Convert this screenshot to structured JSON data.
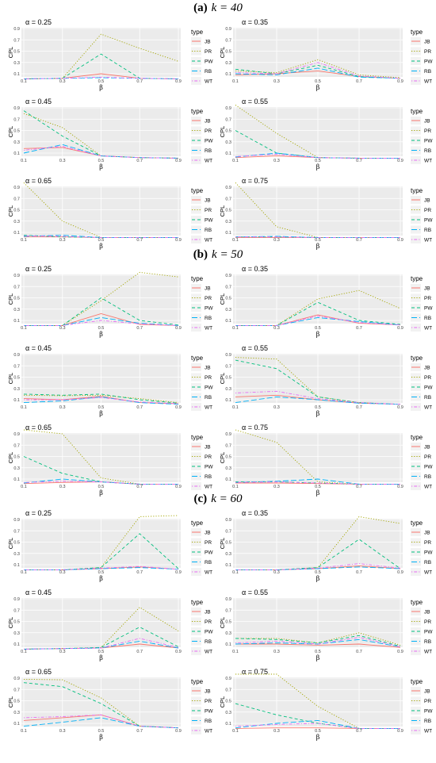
{
  "sections": [
    {
      "label": "(a)",
      "k_text": "k = 40"
    },
    {
      "label": "(b)",
      "k_text": "k = 50"
    },
    {
      "label": "(c)",
      "k_text": "k = 60"
    }
  ],
  "legend": {
    "title": "type",
    "entries": [
      {
        "name": "JB",
        "color": "#F8766D",
        "dash": "solid"
      },
      {
        "name": "PR",
        "color": "#A3A500",
        "dash": "dotted"
      },
      {
        "name": "PW",
        "color": "#00BF7D",
        "dash": "dashed"
      },
      {
        "name": "RB",
        "color": "#00B0F6",
        "dash": "longdash"
      },
      {
        "name": "WT",
        "color": "#E76BF3",
        "dash": "dotdash"
      }
    ]
  },
  "axes": {
    "xlabel": "β",
    "ylabel": "CPL",
    "x_ticks": [
      "0.1",
      "0.3",
      "0.5",
      "0.7",
      "0.9"
    ],
    "y_ticks": [
      "0.1",
      "0.3",
      "0.5",
      "0.7",
      "0.9"
    ]
  },
  "chart_data": [
    {
      "type": "line",
      "section": "(a) k = 40",
      "title": "α = 0.25",
      "x": [
        0.1,
        0.3,
        0.5,
        0.7,
        0.9
      ],
      "series": [
        {
          "name": "JB",
          "values": [
            0.01,
            0.02,
            0.1,
            0.02,
            0.01
          ]
        },
        {
          "name": "PR",
          "values": [
            0.01,
            0.02,
            0.8,
            0.55,
            0.32
          ]
        },
        {
          "name": "PW",
          "values": [
            0.01,
            0.02,
            0.45,
            0.02,
            0.01
          ]
        },
        {
          "name": "RB",
          "values": [
            0.01,
            0.02,
            0.03,
            0.02,
            0.01
          ]
        },
        {
          "name": "WT",
          "values": [
            0.01,
            0.02,
            0.04,
            0.02,
            0.01
          ]
        }
      ]
    },
    {
      "type": "line",
      "section": "(a) k = 40",
      "title": "α = 0.35",
      "x": [
        0.1,
        0.3,
        0.5,
        0.7,
        0.9
      ],
      "series": [
        {
          "name": "JB",
          "values": [
            0.08,
            0.1,
            0.15,
            0.05,
            0.02
          ]
        },
        {
          "name": "PR",
          "values": [
            0.15,
            0.12,
            0.35,
            0.08,
            0.03
          ]
        },
        {
          "name": "PW",
          "values": [
            0.18,
            0.1,
            0.25,
            0.05,
            0.02
          ]
        },
        {
          "name": "RB",
          "values": [
            0.1,
            0.08,
            0.2,
            0.04,
            0.02
          ]
        },
        {
          "name": "WT",
          "values": [
            0.12,
            0.1,
            0.3,
            0.06,
            0.02
          ]
        }
      ]
    },
    {
      "type": "line",
      "section": "(a) k = 40",
      "title": "α = 0.45",
      "x": [
        0.1,
        0.3,
        0.5,
        0.7,
        0.9
      ],
      "series": [
        {
          "name": "JB",
          "values": [
            0.18,
            0.2,
            0.05,
            0.02,
            0.01
          ]
        },
        {
          "name": "PR",
          "values": [
            0.8,
            0.55,
            0.05,
            0.02,
            0.01
          ]
        },
        {
          "name": "PW",
          "values": [
            0.85,
            0.4,
            0.05,
            0.02,
            0.01
          ]
        },
        {
          "name": "RB",
          "values": [
            0.1,
            0.25,
            0.05,
            0.02,
            0.01
          ]
        },
        {
          "name": "WT",
          "values": [
            0.15,
            0.22,
            0.05,
            0.02,
            0.01
          ]
        }
      ]
    },
    {
      "type": "line",
      "section": "(a) k = 40",
      "title": "α = 0.55",
      "x": [
        0.1,
        0.3,
        0.5,
        0.7,
        0.9
      ],
      "series": [
        {
          "name": "JB",
          "values": [
            0.02,
            0.05,
            0.02,
            0.01,
            0.01
          ]
        },
        {
          "name": "PR",
          "values": [
            0.95,
            0.45,
            0.02,
            0.01,
            0.01
          ]
        },
        {
          "name": "PW",
          "values": [
            0.5,
            0.1,
            0.02,
            0.01,
            0.01
          ]
        },
        {
          "name": "RB",
          "values": [
            0.03,
            0.1,
            0.02,
            0.01,
            0.01
          ]
        },
        {
          "name": "WT",
          "values": [
            0.04,
            0.08,
            0.02,
            0.01,
            0.01
          ]
        }
      ]
    },
    {
      "type": "line",
      "section": "(a) k = 40",
      "title": "α = 0.65",
      "x": [
        0.1,
        0.3,
        0.5,
        0.7,
        0.9
      ],
      "series": [
        {
          "name": "JB",
          "values": [
            0.02,
            0.02,
            0.01,
            0.01,
            0.01
          ]
        },
        {
          "name": "PR",
          "values": [
            0.98,
            0.3,
            0.01,
            0.01,
            0.01
          ]
        },
        {
          "name": "PW",
          "values": [
            0.05,
            0.02,
            0.01,
            0.01,
            0.01
          ]
        },
        {
          "name": "RB",
          "values": [
            0.03,
            0.05,
            0.01,
            0.01,
            0.01
          ]
        },
        {
          "name": "WT",
          "values": [
            0.04,
            0.03,
            0.01,
            0.01,
            0.01
          ]
        }
      ]
    },
    {
      "type": "line",
      "section": "(a) k = 40",
      "title": "α = 0.75",
      "x": [
        0.1,
        0.3,
        0.5,
        0.7,
        0.9
      ],
      "series": [
        {
          "name": "JB",
          "values": [
            0.01,
            0.01,
            0.01,
            0.01,
            0.01
          ]
        },
        {
          "name": "PR",
          "values": [
            0.98,
            0.2,
            0.01,
            0.01,
            0.01
          ]
        },
        {
          "name": "PW",
          "values": [
            0.02,
            0.02,
            0.01,
            0.01,
            0.01
          ]
        },
        {
          "name": "RB",
          "values": [
            0.02,
            0.03,
            0.01,
            0.01,
            0.01
          ]
        },
        {
          "name": "WT",
          "values": [
            0.02,
            0.02,
            0.01,
            0.01,
            0.01
          ]
        }
      ]
    },
    {
      "type": "line",
      "section": "(b) k = 50",
      "title": "α = 0.25",
      "x": [
        0.1,
        0.3,
        0.5,
        0.7,
        0.9
      ],
      "series": [
        {
          "name": "JB",
          "values": [
            0.01,
            0.01,
            0.22,
            0.03,
            0.01
          ]
        },
        {
          "name": "PR",
          "values": [
            0.01,
            0.01,
            0.45,
            0.95,
            0.87
          ]
        },
        {
          "name": "PW",
          "values": [
            0.01,
            0.01,
            0.5,
            0.1,
            0.02
          ]
        },
        {
          "name": "RB",
          "values": [
            0.01,
            0.01,
            0.15,
            0.05,
            0.01
          ]
        },
        {
          "name": "WT",
          "values": [
            0.01,
            0.01,
            0.1,
            0.04,
            0.01
          ]
        }
      ]
    },
    {
      "type": "line",
      "section": "(b) k = 50",
      "title": "α = 0.35",
      "x": [
        0.1,
        0.3,
        0.5,
        0.7,
        0.9
      ],
      "series": [
        {
          "name": "JB",
          "values": [
            0.01,
            0.01,
            0.2,
            0.05,
            0.02
          ]
        },
        {
          "name": "PR",
          "values": [
            0.01,
            0.01,
            0.48,
            0.63,
            0.31
          ]
        },
        {
          "name": "PW",
          "values": [
            0.01,
            0.01,
            0.42,
            0.1,
            0.03
          ]
        },
        {
          "name": "RB",
          "values": [
            0.01,
            0.01,
            0.15,
            0.08,
            0.02
          ]
        },
        {
          "name": "WT",
          "values": [
            0.01,
            0.01,
            0.18,
            0.06,
            0.02
          ]
        }
      ]
    },
    {
      "type": "line",
      "section": "(b) k = 50",
      "title": "α = 0.45",
      "x": [
        0.1,
        0.3,
        0.5,
        0.7,
        0.9
      ],
      "series": [
        {
          "name": "JB",
          "values": [
            0.12,
            0.1,
            0.16,
            0.05,
            0.03
          ]
        },
        {
          "name": "PR",
          "values": [
            0.18,
            0.17,
            0.18,
            0.12,
            0.05
          ]
        },
        {
          "name": "PW",
          "values": [
            0.2,
            0.18,
            0.2,
            0.1,
            0.04
          ]
        },
        {
          "name": "RB",
          "values": [
            0.05,
            0.08,
            0.15,
            0.05,
            0.02
          ]
        },
        {
          "name": "WT",
          "values": [
            0.1,
            0.1,
            0.14,
            0.06,
            0.03
          ]
        }
      ]
    },
    {
      "type": "line",
      "section": "(b) k = 50",
      "title": "α = 0.55",
      "x": [
        0.1,
        0.3,
        0.5,
        0.7,
        0.9
      ],
      "series": [
        {
          "name": "JB",
          "values": [
            0.15,
            0.18,
            0.1,
            0.04,
            0.02
          ]
        },
        {
          "name": "PR",
          "values": [
            0.85,
            0.82,
            0.15,
            0.05,
            0.02
          ]
        },
        {
          "name": "PW",
          "values": [
            0.8,
            0.65,
            0.15,
            0.05,
            0.02
          ]
        },
        {
          "name": "RB",
          "values": [
            0.05,
            0.15,
            0.1,
            0.04,
            0.02
          ]
        },
        {
          "name": "WT",
          "values": [
            0.22,
            0.25,
            0.12,
            0.05,
            0.02
          ]
        }
      ]
    },
    {
      "type": "line",
      "section": "(b) k = 50",
      "title": "α = 0.65",
      "x": [
        0.1,
        0.3,
        0.5,
        0.7,
        0.9
      ],
      "series": [
        {
          "name": "JB",
          "values": [
            0.02,
            0.04,
            0.05,
            0.01,
            0.01
          ]
        },
        {
          "name": "PR",
          "values": [
            0.97,
            0.9,
            0.12,
            0.01,
            0.01
          ]
        },
        {
          "name": "PW",
          "values": [
            0.5,
            0.2,
            0.05,
            0.01,
            0.01
          ]
        },
        {
          "name": "RB",
          "values": [
            0.03,
            0.1,
            0.05,
            0.01,
            0.01
          ]
        },
        {
          "name": "WT",
          "values": [
            0.04,
            0.06,
            0.05,
            0.01,
            0.01
          ]
        }
      ]
    },
    {
      "type": "line",
      "section": "(b) k = 50",
      "title": "α = 0.75",
      "x": [
        0.1,
        0.3,
        0.5,
        0.7,
        0.9
      ],
      "series": [
        {
          "name": "JB",
          "values": [
            0.03,
            0.03,
            0.02,
            0.01,
            0.01
          ]
        },
        {
          "name": "PR",
          "values": [
            0.97,
            0.75,
            0.05,
            0.01,
            0.01
          ]
        },
        {
          "name": "PW",
          "values": [
            0.05,
            0.05,
            0.03,
            0.01,
            0.01
          ]
        },
        {
          "name": "RB",
          "values": [
            0.04,
            0.06,
            0.1,
            0.01,
            0.01
          ]
        },
        {
          "name": "WT",
          "values": [
            0.04,
            0.05,
            0.03,
            0.01,
            0.01
          ]
        }
      ]
    },
    {
      "type": "line",
      "section": "(c) k = 60",
      "title": "α = 0.25",
      "x": [
        0.1,
        0.3,
        0.5,
        0.7,
        0.9
      ],
      "series": [
        {
          "name": "JB",
          "values": [
            0.01,
            0.01,
            0.03,
            0.06,
            0.02
          ]
        },
        {
          "name": "PR",
          "values": [
            0.01,
            0.01,
            0.05,
            0.95,
            0.97
          ]
        },
        {
          "name": "PW",
          "values": [
            0.01,
            0.01,
            0.05,
            0.65,
            0.03
          ]
        },
        {
          "name": "RB",
          "values": [
            0.01,
            0.01,
            0.03,
            0.05,
            0.02
          ]
        },
        {
          "name": "WT",
          "values": [
            0.01,
            0.01,
            0.04,
            0.07,
            0.02
          ]
        }
      ]
    },
    {
      "type": "line",
      "section": "(c) k = 60",
      "title": "α = 0.35",
      "x": [
        0.1,
        0.3,
        0.5,
        0.7,
        0.9
      ],
      "series": [
        {
          "name": "JB",
          "values": [
            0.01,
            0.01,
            0.03,
            0.08,
            0.03
          ]
        },
        {
          "name": "PR",
          "values": [
            0.01,
            0.01,
            0.05,
            0.95,
            0.83
          ]
        },
        {
          "name": "PW",
          "values": [
            0.01,
            0.01,
            0.05,
            0.55,
            0.03
          ]
        },
        {
          "name": "RB",
          "values": [
            0.01,
            0.01,
            0.03,
            0.06,
            0.03
          ]
        },
        {
          "name": "WT",
          "values": [
            0.01,
            0.01,
            0.04,
            0.12,
            0.04
          ]
        }
      ]
    },
    {
      "type": "line",
      "section": "(c) k = 60",
      "title": "α = 0.45",
      "x": [
        0.1,
        0.3,
        0.5,
        0.7,
        0.9
      ],
      "series": [
        {
          "name": "JB",
          "values": [
            0.01,
            0.02,
            0.03,
            0.1,
            0.03
          ]
        },
        {
          "name": "PR",
          "values": [
            0.01,
            0.02,
            0.04,
            0.75,
            0.33
          ]
        },
        {
          "name": "PW",
          "values": [
            0.01,
            0.02,
            0.04,
            0.4,
            0.05
          ]
        },
        {
          "name": "RB",
          "values": [
            0.01,
            0.02,
            0.03,
            0.15,
            0.03
          ]
        },
        {
          "name": "WT",
          "values": [
            0.01,
            0.02,
            0.03,
            0.2,
            0.04
          ]
        }
      ]
    },
    {
      "type": "line",
      "section": "(c) k = 60",
      "title": "α = 0.55",
      "x": [
        0.1,
        0.3,
        0.5,
        0.7,
        0.9
      ],
      "series": [
        {
          "name": "JB",
          "values": [
            0.1,
            0.1,
            0.08,
            0.1,
            0.04
          ]
        },
        {
          "name": "PR",
          "values": [
            0.2,
            0.2,
            0.12,
            0.3,
            0.08
          ]
        },
        {
          "name": "PW",
          "values": [
            0.2,
            0.18,
            0.12,
            0.25,
            0.06
          ]
        },
        {
          "name": "RB",
          "values": [
            0.1,
            0.12,
            0.1,
            0.18,
            0.05
          ]
        },
        {
          "name": "WT",
          "values": [
            0.12,
            0.15,
            0.1,
            0.22,
            0.05
          ]
        }
      ]
    },
    {
      "type": "line",
      "section": "(c) k = 60",
      "title": "α = 0.65",
      "x": [
        0.1,
        0.3,
        0.5,
        0.7,
        0.9
      ],
      "series": [
        {
          "name": "JB",
          "values": [
            0.15,
            0.2,
            0.25,
            0.05,
            0.02
          ]
        },
        {
          "name": "PR",
          "values": [
            0.88,
            0.87,
            0.55,
            0.05,
            0.02
          ]
        },
        {
          "name": "PW",
          "values": [
            0.82,
            0.75,
            0.45,
            0.05,
            0.02
          ]
        },
        {
          "name": "RB",
          "values": [
            0.05,
            0.12,
            0.2,
            0.05,
            0.02
          ]
        },
        {
          "name": "WT",
          "values": [
            0.2,
            0.22,
            0.25,
            0.05,
            0.02
          ]
        }
      ]
    },
    {
      "type": "line",
      "section": "(c) k = 60",
      "title": "α = 0.75",
      "x": [
        0.1,
        0.3,
        0.5,
        0.7,
        0.9
      ],
      "series": [
        {
          "name": "JB",
          "values": [
            0.01,
            0.02,
            0.02,
            0.01,
            0.01
          ]
        },
        {
          "name": "PR",
          "values": [
            0.97,
            0.97,
            0.4,
            0.01,
            0.01
          ]
        },
        {
          "name": "PW",
          "values": [
            0.45,
            0.25,
            0.1,
            0.01,
            0.01
          ]
        },
        {
          "name": "RB",
          "values": [
            0.02,
            0.1,
            0.15,
            0.01,
            0.01
          ]
        },
        {
          "name": "WT",
          "values": [
            0.05,
            0.08,
            0.1,
            0.01,
            0.01
          ]
        }
      ]
    }
  ]
}
